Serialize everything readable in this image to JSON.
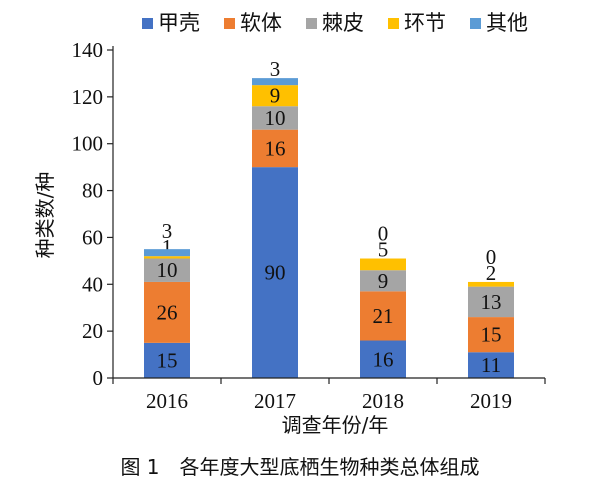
{
  "caption": "图 1　各年度大型底栖生物种类总体组成",
  "chart_data": {
    "type": "bar",
    "stacked": true,
    "categories": [
      "2016",
      "2017",
      "2018",
      "2019"
    ],
    "series": [
      {
        "name": "甲壳",
        "color": "#4472C4",
        "values": [
          15,
          90,
          16,
          11
        ]
      },
      {
        "name": "软体",
        "color": "#ED7D31",
        "values": [
          26,
          16,
          21,
          15
        ]
      },
      {
        "name": "棘皮",
        "color": "#A5A5A5",
        "values": [
          10,
          10,
          9,
          13
        ]
      },
      {
        "name": "环节",
        "color": "#FFC000",
        "values": [
          1,
          9,
          5,
          2
        ]
      },
      {
        "name": "其他",
        "color": "#5B9BD5",
        "values": [
          3,
          3,
          0,
          0
        ]
      }
    ],
    "xlabel": "调查年份/年",
    "ylabel": "种类数/种",
    "ylim": [
      0,
      140
    ],
    "yticks": [
      0,
      20,
      40,
      60,
      80,
      100,
      120,
      140
    ],
    "grid": false,
    "legend": "top"
  }
}
